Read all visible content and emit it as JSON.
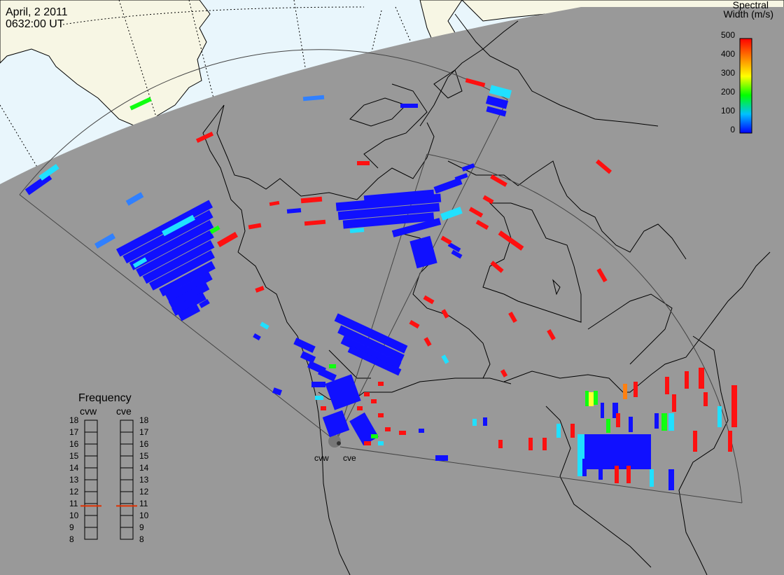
{
  "header": {
    "date": "April, 2 2011",
    "time": "0632:00 UT"
  },
  "colorbar": {
    "title_line1": "Spectral",
    "title_line2": "Width (m/s)",
    "ticks": [
      "500",
      "400",
      "300",
      "200",
      "100",
      "0"
    ],
    "min": 0,
    "max": 500,
    "colors": [
      "#0000ff",
      "#00c0ff",
      "#00ff00",
      "#ffff00",
      "#ff8000",
      "#ff0000"
    ]
  },
  "radars": {
    "cvw": "cvw",
    "cve": "cve"
  },
  "frequency_panel": {
    "title": "Frequency",
    "radar_left": "cvw",
    "radar_right": "cve",
    "levels": [
      "18",
      "17",
      "16",
      "15",
      "14",
      "13",
      "12",
      "11",
      "10",
      "9",
      "8"
    ],
    "cvw_mhz": 10.8,
    "cve_mhz": 10.8
  },
  "colors": {
    "night": "#999999",
    "day_ocean": "#e9f6fc",
    "day_land": "#f7f6e4",
    "coast": "#000000",
    "fov": "#444444",
    "marker": "#e03000"
  }
}
